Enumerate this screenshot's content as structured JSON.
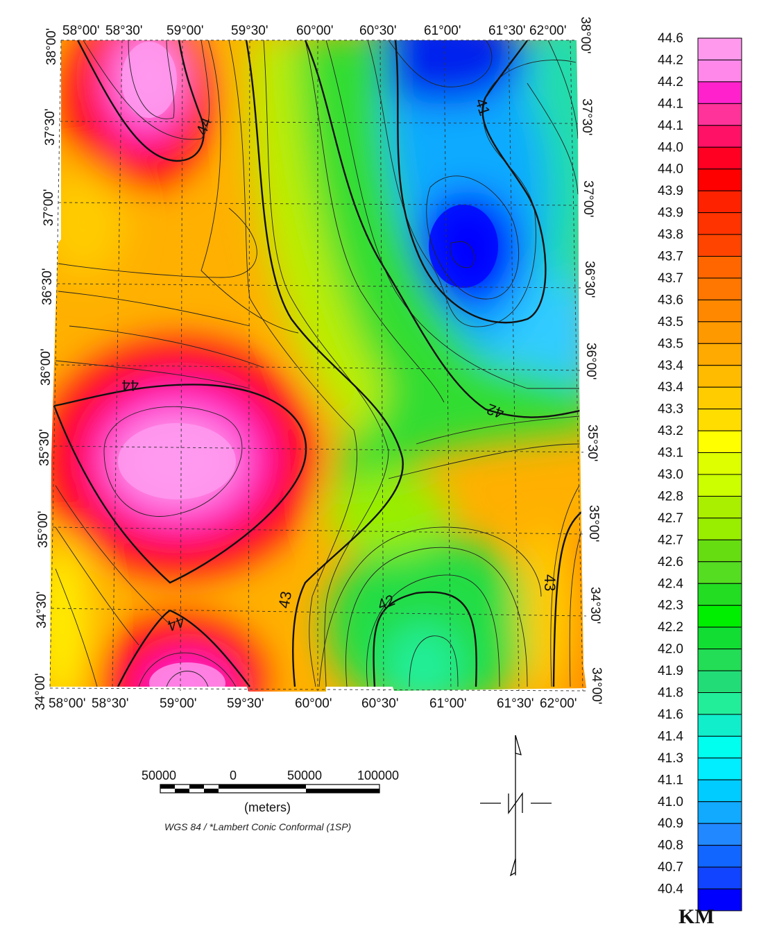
{
  "map": {
    "lon_labels": [
      "58°00'",
      "58°30'",
      "59°00'",
      "59°30'",
      "60°00'",
      "60°30'",
      "61°00'",
      "61°30'",
      "62°00'"
    ],
    "lat_labels": [
      "38°00'",
      "37°30'",
      "37°00'",
      "36°30'",
      "36°00'",
      "35°30'",
      "35°00'",
      "34°30'",
      "34°00'"
    ],
    "contour_labels": [
      "44",
      "44",
      "44",
      "41",
      "42",
      "43",
      "42",
      "43"
    ],
    "colors": {
      "low": "#0000ff",
      "high": "#ff99ee",
      "grid": "#333333",
      "contour": "#222222"
    }
  },
  "legend": {
    "values": [
      "44.6",
      "44.2",
      "44.2",
      "44.1",
      "44.1",
      "44.0",
      "44.0",
      "43.9",
      "43.9",
      "43.8",
      "43.7",
      "43.7",
      "43.6",
      "43.5",
      "43.5",
      "43.4",
      "43.4",
      "43.3",
      "43.2",
      "43.1",
      "43.0",
      "42.8",
      "42.7",
      "42.7",
      "42.6",
      "42.4",
      "42.3",
      "42.2",
      "42.0",
      "41.9",
      "41.8",
      "41.6",
      "41.4",
      "41.3",
      "41.1",
      "41.0",
      "40.9",
      "40.8",
      "40.7",
      "40.4"
    ],
    "colors": [
      "#ff99ee",
      "#ff88ea",
      "#ff22cc",
      "#ff3399",
      "#ff1166",
      "#ff0022",
      "#ff0000",
      "#ff2200",
      "#ff3300",
      "#ff4400",
      "#ff6600",
      "#ff7700",
      "#ff8800",
      "#ff9900",
      "#ffaa00",
      "#ffbb00",
      "#ffcc00",
      "#ffdd00",
      "#ffff00",
      "#ddff00",
      "#ccff00",
      "#aaee00",
      "#99ee00",
      "#66dd11",
      "#55dd22",
      "#22dd22",
      "#00ee00",
      "#11dd33",
      "#22dd55",
      "#22dd77",
      "#22ee99",
      "#11eecc",
      "#00ffee",
      "#00eeff",
      "#00ccff",
      "#11aaff",
      "#2288ff",
      "#1166ff",
      "#1144ff",
      "#0000ff"
    ],
    "unit": "KM"
  },
  "scale_bar": {
    "labels": [
      "50000",
      "0",
      "50000",
      "100000"
    ],
    "unit": "(meters)",
    "projection": "WGS 84 / *Lambert Conic Conformal (1SP)"
  }
}
